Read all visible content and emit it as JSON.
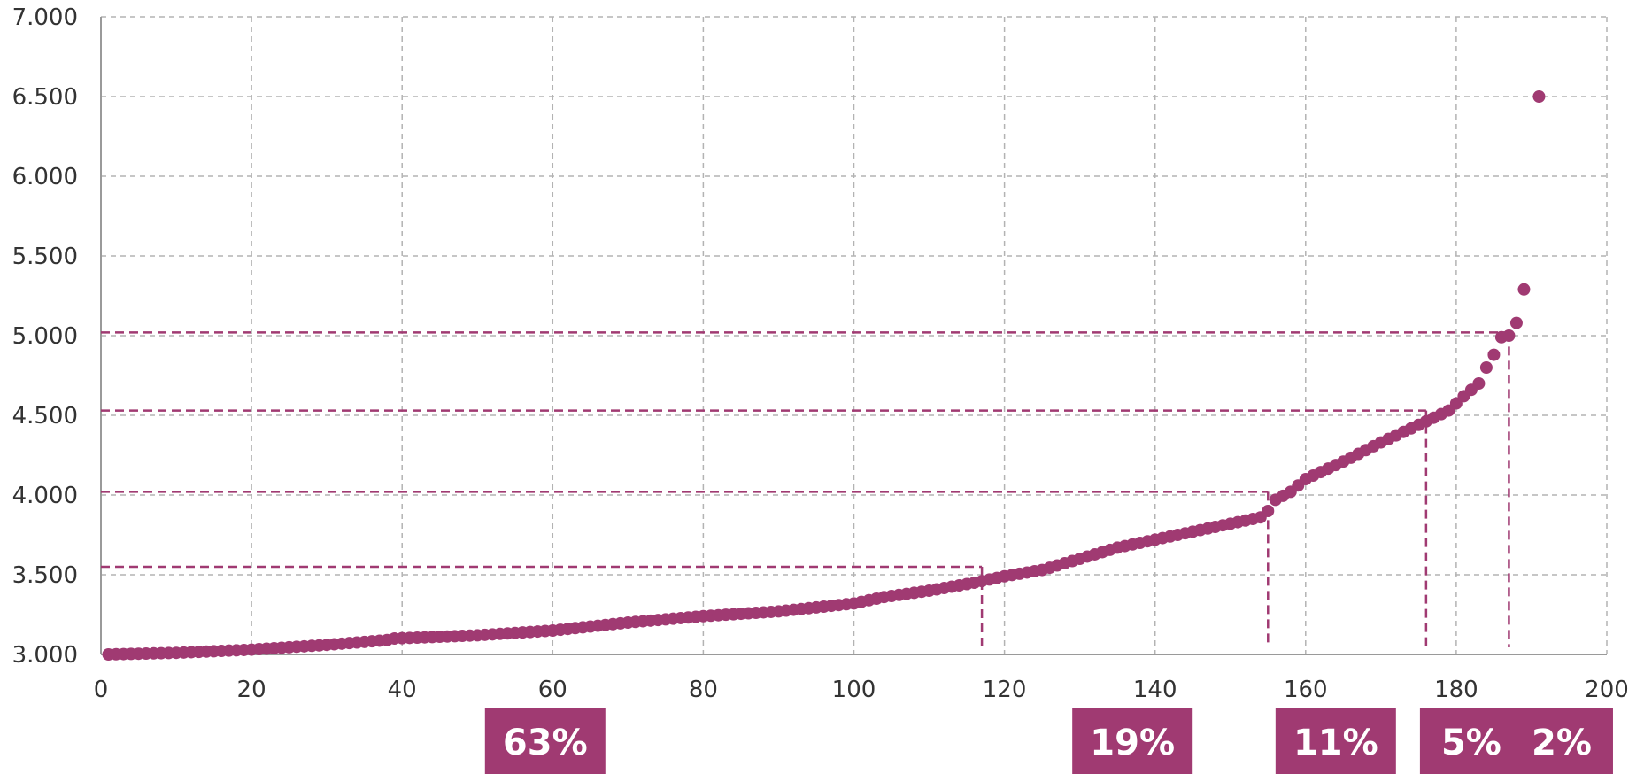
{
  "chart_data": {
    "type": "scatter",
    "title": "",
    "xlabel": "",
    "ylabel": "",
    "xlim": [
      0,
      200
    ],
    "ylim": [
      3000,
      7000
    ],
    "x_ticks": [
      "0",
      "20",
      "40",
      "60",
      "80",
      "100",
      "120",
      "140",
      "160",
      "180",
      "200"
    ],
    "y_ticks": [
      "3.000",
      "3.500",
      "4.000",
      "4.500",
      "5.000",
      "5.500",
      "6.000",
      "6.500",
      "7.000"
    ],
    "grid": true,
    "legend": "none",
    "colors": {
      "points": "#a03a72",
      "grid": "#b3b3b3",
      "axis": "#9a9a9a",
      "badge": "#a03a72",
      "badge_text": "#ffffff"
    },
    "anchors": [
      [
        1,
        3000
      ],
      [
        10,
        3010
      ],
      [
        20,
        3030
      ],
      [
        30,
        3060
      ],
      [
        38,
        3090
      ],
      [
        39,
        3100
      ],
      [
        50,
        3120
      ],
      [
        60,
        3150
      ],
      [
        70,
        3200
      ],
      [
        80,
        3240
      ],
      [
        90,
        3270
      ],
      [
        100,
        3320
      ],
      [
        104,
        3360
      ],
      [
        110,
        3400
      ],
      [
        116,
        3450
      ],
      [
        120,
        3490
      ],
      [
        125,
        3530
      ],
      [
        130,
        3600
      ],
      [
        135,
        3670
      ],
      [
        140,
        3720
      ],
      [
        145,
        3770
      ],
      [
        150,
        3820
      ],
      [
        154,
        3860
      ],
      [
        155,
        3900
      ],
      [
        156,
        3970
      ],
      [
        158,
        4020
      ],
      [
        160,
        4100
      ],
      [
        165,
        4210
      ],
      [
        170,
        4330
      ],
      [
        175,
        4440
      ],
      [
        179,
        4530
      ],
      [
        181,
        4620
      ],
      [
        183,
        4700
      ],
      [
        184,
        4800
      ],
      [
        185,
        4880
      ],
      [
        186,
        4990
      ],
      [
        187,
        5000
      ],
      [
        188,
        5080
      ],
      [
        189,
        5290
      ],
      [
        190,
        5380
      ],
      [
        191,
        6500
      ]
    ],
    "thresholds": [
      {
        "y": 3550,
        "x": 117
      },
      {
        "y": 4020,
        "x": 155
      },
      {
        "y": 4530,
        "x": 176
      },
      {
        "y": 5020,
        "x": 187
      }
    ],
    "segments": [
      {
        "label": "63%",
        "x_center": 59
      },
      {
        "label": "19%",
        "x_center": 137
      },
      {
        "label": "11%",
        "x_center": 164
      },
      {
        "label": "5%",
        "x_center": 182
      },
      {
        "label": "2%",
        "x_center": 194
      }
    ]
  }
}
